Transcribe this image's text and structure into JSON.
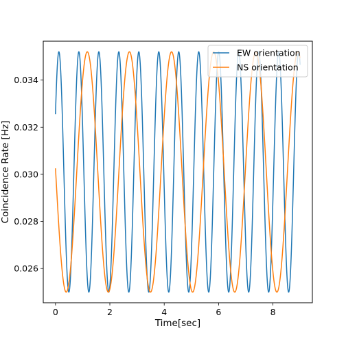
{
  "chart_data": {
    "type": "line",
    "title": "",
    "xlabel": "Time[sec]",
    "ylabel": "Coincidence Rate [Hz]",
    "xlim": [
      -0.45,
      9.45
    ],
    "ylim": [
      0.02455,
      0.03565
    ],
    "x_ticks": [
      0,
      2,
      4,
      6,
      8
    ],
    "x_tick_labels": [
      "0",
      "2",
      "4",
      "6",
      "8"
    ],
    "y_ticks": [
      0.026,
      0.028,
      0.03,
      0.032,
      0.034
    ],
    "y_tick_labels": [
      "0.026",
      "0.028",
      "0.030",
      "0.032",
      "0.034"
    ],
    "x_range": [
      0,
      9
    ],
    "grid": false,
    "legend_position": "top-right",
    "series": [
      {
        "name": "EW orientation",
        "color": "#1f77b4",
        "mean": 0.0301,
        "amplitude": 0.0051,
        "period_sec": 0.735,
        "first_peak_sec": 0.86,
        "start_value": 0.03355,
        "end_value": 0.0341
      },
      {
        "name": "NS orientation",
        "color": "#ff7f0e",
        "mean": 0.0301,
        "amplitude": 0.0051,
        "period_sec": 1.55,
        "first_peak_sec": 1.17,
        "start_value": 0.03,
        "end_value": 0.0352
      }
    ]
  }
}
